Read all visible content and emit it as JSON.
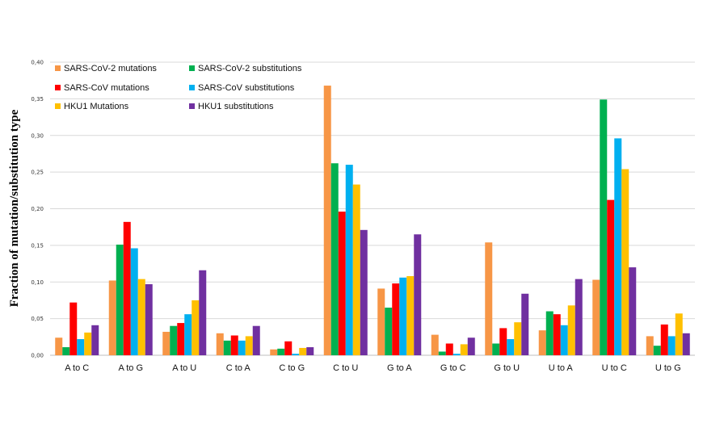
{
  "chart_data": {
    "type": "bar",
    "title": "",
    "xlabel": "",
    "ylabel": "Fraction of mutation/substitution type",
    "ylim": [
      0,
      0.4
    ],
    "yticks": [
      "0,00",
      "0,05",
      "0,10",
      "0,15",
      "0,20",
      "0,25",
      "0,30",
      "0,35",
      "0,40"
    ],
    "grid": true,
    "legend_position": "top-left",
    "categories": [
      "A to C",
      "A to G",
      "A to U",
      "C to A",
      "C to G",
      "C to U",
      "G to A",
      "G to C",
      "G to U",
      "U to A",
      "U to C",
      "U to G"
    ],
    "series": [
      {
        "name": "SARS-CoV-2 mutations",
        "color": "#f79646",
        "values": [
          0.024,
          0.102,
          0.032,
          0.03,
          0.008,
          0.368,
          0.091,
          0.028,
          0.154,
          0.034,
          0.103,
          0.026
        ]
      },
      {
        "name": "SARS-CoV-2 substitutions",
        "color": "#00b050",
        "values": [
          0.011,
          0.151,
          0.04,
          0.02,
          0.009,
          0.262,
          0.065,
          0.005,
          0.016,
          0.06,
          0.349,
          0.013
        ]
      },
      {
        "name": "SARS-CoV mutations",
        "color": "#ff0000",
        "values": [
          0.072,
          0.182,
          0.044,
          0.027,
          0.019,
          0.196,
          0.098,
          0.016,
          0.037,
          0.056,
          0.212,
          0.042
        ]
      },
      {
        "name": "SARS-CoV substitutions",
        "color": "#00b0f0",
        "values": [
          0.022,
          0.146,
          0.056,
          0.02,
          0.002,
          0.26,
          0.106,
          0.002,
          0.022,
          0.041,
          0.296,
          0.026
        ]
      },
      {
        "name": "HKU1 Mutations",
        "color": "#ffc000",
        "values": [
          0.031,
          0.104,
          0.075,
          0.026,
          0.01,
          0.233,
          0.108,
          0.015,
          0.045,
          0.068,
          0.254,
          0.057
        ]
      },
      {
        "name": "HKU1 substitutions",
        "color": "#7030a0",
        "values": [
          0.041,
          0.097,
          0.116,
          0.04,
          0.011,
          0.171,
          0.165,
          0.024,
          0.084,
          0.104,
          0.12,
          0.03
        ]
      }
    ]
  }
}
